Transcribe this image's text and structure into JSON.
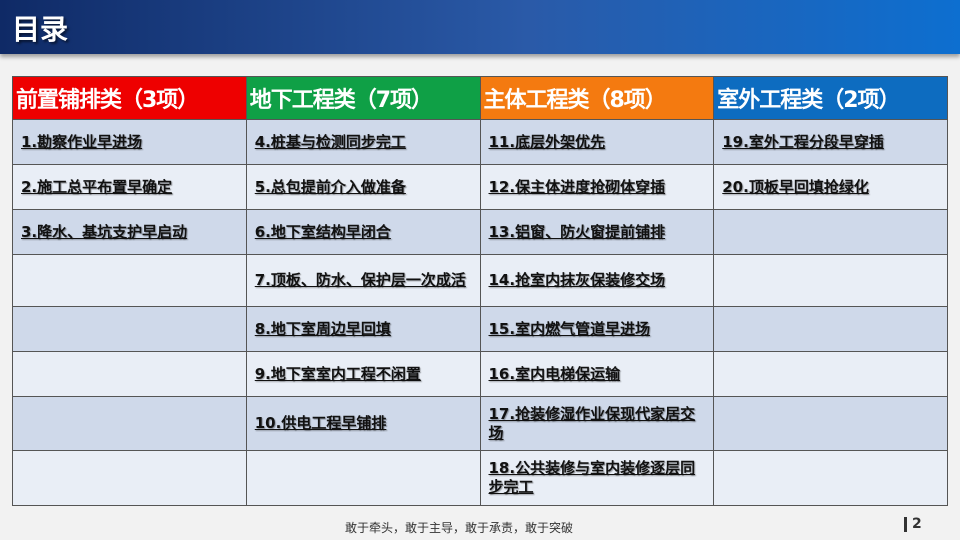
{
  "title": "目录",
  "header_colors": [
    "#ee0000",
    "#0fa046",
    "#f47a10",
    "#0d6cc0"
  ],
  "columns": [
    {
      "header": "前置铺排类（3项）",
      "items": [
        "1.勘察作业早进场",
        "2.施工总平布置早确定",
        "3.降水、基坑支护早启动",
        "",
        "",
        "",
        "",
        ""
      ]
    },
    {
      "header": "地下工程类（7项）",
      "items": [
        "4.桩基与检测同步完工",
        "5.总包提前介入做准备",
        "6.地下室结构早闭合",
        "7.顶板、防水、保护层一次成活",
        "8.地下室周边早回填",
        "9.地下室室内工程不闲置",
        "10.供电工程早铺排",
        ""
      ]
    },
    {
      "header": "主体工程类（8项）",
      "items": [
        "11.底层外架优先",
        "12.保主体进度抢砌体穿插",
        "13.铝窗、防火窗提前铺排",
        "14.抢室内抹灰保装修交场",
        "15.室内燃气管道早进场",
        "16.室内电梯保运输",
        "17.抢装修湿作业保现代家居交场",
        "18.公共装修与室内装修逐层同步完工"
      ]
    },
    {
      "header": "室外工程类（2项）",
      "items": [
        "19.室外工程分段早穿插",
        "20.顶板早回填抢绿化",
        "",
        "",
        "",
        "",
        "",
        ""
      ]
    }
  ],
  "footer": "敢于牵头，敢于主导，敢于承责，敢于突破",
  "page_number": "2"
}
